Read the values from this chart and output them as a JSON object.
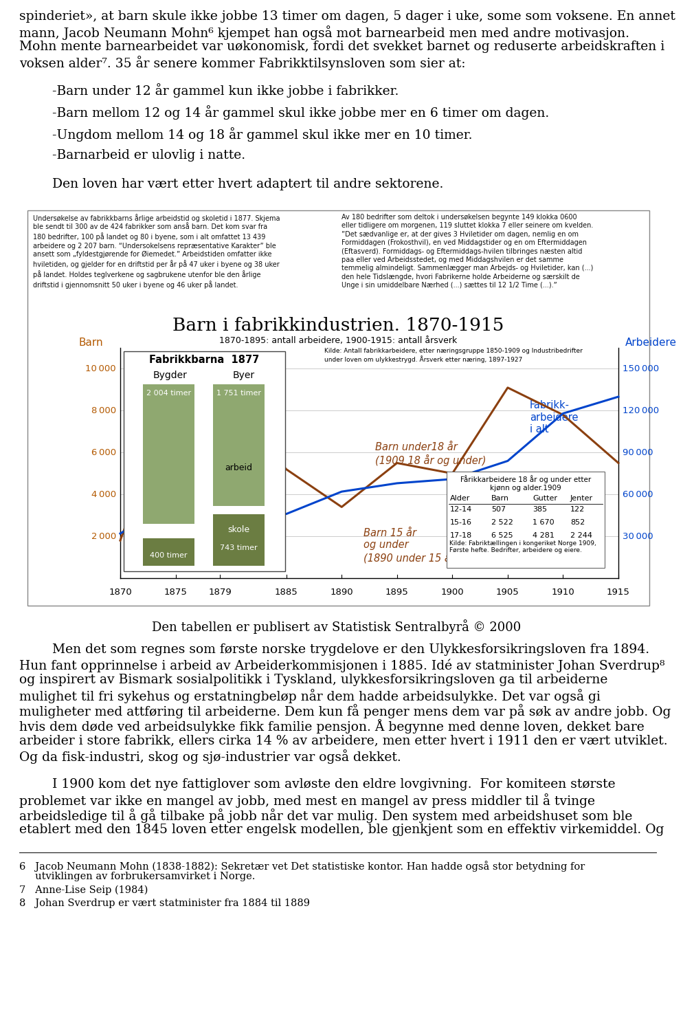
{
  "bg_color": "#ffffff",
  "text_color": "#000000",
  "page_width": 9.6,
  "page_height": 14.55,
  "line1": "spinderiet», at barn skule ikke jobbe 13 timer om dagen, 5 dager i uke, some som voksene. En annet",
  "line2": "mann, Jacob Neumann Mohn⁶ kjempet han også mot barnearbeid men med andre motivasjon.",
  "line3": "Mohn mente barnearbeidet var uøkonomisk, fordi det svekket barnet og reduserte arbeidskraften i",
  "line4": "voksen alder⁷. 35 år senere kommer Fabrikktilsynsloven som sier at:",
  "bullet1": "        -Barn under 12 år gammel kun ikke jobbe i fabrikker.",
  "bullet2": "        -Barn mellom 12 og 14 år gammel skul ikke jobbe mer en 6 timer om dagen.",
  "bullet3": "        -Ungdom mellom 14 og 18 år gammel skul ikke mer en 10 timer.",
  "bullet4": "        -Barnarbeid er ulovlig i natte.",
  "closing_sentence": "        Den loven har vært etter hvert adaptert til andre sektorene.",
  "chart_caption": "Den tabellen er publisert av Statistisk Sentralbyrå © 2000",
  "bp1_line1": "        Men det som regnes som første norske trygdelove er den Ulykkesforsikringsloven fra 1894.",
  "bp1_line2": "Hun fant opprinnelse i arbeid av Arbeiderkommisjonen i 1885. Idé av statminister Johan Sverdrup⁸",
  "bp1_line3": "og inspirert av Bismark sosialpolitikk i Tyskland, ulykkesforsikringsloven ga til arbeiderne",
  "bp1_line4": "mulighet til fri sykehus og erstatningbeløp når dem hadde arbeidsulykke. Det var også gi",
  "bp1_line5": "muligheter med attføring til arbeiderne. Dem kun få penger mens dem var på søk av andre jobb. Og",
  "bp1_line6": "hvis dem døde ved arbeidsulykke fikk familie pensjon. Å begynne med denne loven, dekket bare",
  "bp1_line7": "arbeider i store fabrikk, ellers cirka 14 % av arbeidere, men etter hvert i 1911 den er vært utviklet.",
  "bp1_line8": "Og da fisk-industri, skog og sjø-industrier var også dekket.",
  "bp2_line1": "        I 1900 kom det nye fattiglover som avløste den eldre lovgivning.  For komiteen største",
  "bp2_line2": "problemet var ikke en mangel av jobb, med mest en mangel av press middler til å tvinge",
  "bp2_line3": "arbeidsledige til å gå tilbake på jobb når det var mulig. Den system med arbeidshuset som ble",
  "bp2_line4": "etablert med den 1845 loven etter engelsk modellen, ble gjenkjent som en effektiv virkemiddel. Og",
  "footnote6a": "6   Jacob Neumann Mohn (1838-1882): Sekretær vet Det statistiske kontor. Han hadde også stor betydning for",
  "footnote6b": "     utviklingen av forbrukersamvirket i Norge.",
  "footnote7": "7   Anne-Lise Seip (1984)",
  "footnote8": "8   Johan Sverdrup er vært statminister fra 1884 til 1889",
  "chart_left_text": "Undersøkelse av fabrikkbarns årlige arbeidstid og skoletid i 1877. Skjema\nble sendt til 300 av de 424 fabrikker som anså barn. Det kom svar fra\n180 bedrifter, 100 på landet og 80 i byene, som i alt omfattet 13 439\narbeidere og 2 207 barn. “Undersokelsens repræsentative Karakter” ble\nansett som „fyldestgjørende for Øiemedet.” Arbeidstiden omfatter ikke\nhviletiden, og gjelder for en driftstid per år på 47 uker i byene og 38 uker\npå landet. Holdes teglverkene og sagbrukene utenfor ble den årlige\ndriftstid i gjennomsnitt 50 uker i byene og 46 uker på landet.",
  "chart_right_text": "Av 180 bedrifter som deltok i undersøkelsen begynte 149 klokka 0600\neller tidligere om morgenen, 119 sluttet klokka 7 eller seinere om kvelden.\n”Det sædvanlige er, at der gives 3 Hviletider om dagen, nemlig en om\nFormiddagen (Frokosthvil), en ved Middagstider og en om Eftermiddagen\n(Eftasverd). Formiddags- og Eftermiddags-hvilen tilbringes næsten altid\npaa eller ved Arbeidsstedet, og med Middagshvilen er det samme\ntemmelig almindeligt. Sammenlægger man Arbejds- og Hviletider, kan (...)\nden hele Tidslængde, hvori Fabrikerne holde Arbeiderne og særskilt de\nUnge i sin umiddelbare Nærhed (...) sættes til 12 1/2 Time (...).”"
}
